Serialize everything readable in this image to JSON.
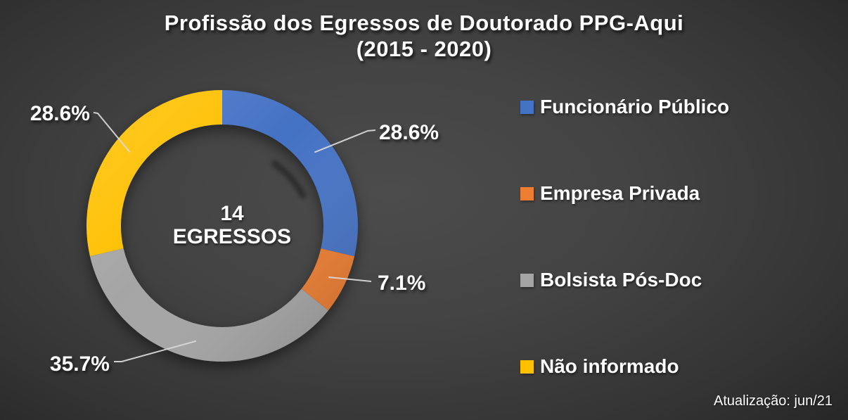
{
  "slide": {
    "title_line1": "Profissão dos Egressos de Doutorado PPG-Aqui",
    "title_line2": "(2015 - 2020)",
    "footnote": "Atualização: jun/21"
  },
  "donut_center": {
    "line1": "14",
    "line2": "EGRESSOS"
  },
  "legend": {
    "items": [
      {
        "label": "Funcionário Público",
        "color": "#4472C4"
      },
      {
        "label": "Empresa Privada",
        "color": "#ED7D31"
      },
      {
        "label": "Bolsista Pós-Doc",
        "color": "#A5A5A5"
      },
      {
        "label": "Não informado",
        "color": "#FFC000"
      }
    ]
  },
  "chart_data": {
    "type": "pie",
    "subtype": "donut",
    "title": "Profissão dos Egressos de Doutorado PPG-Aqui (2015 - 2020)",
    "categories": [
      "Funcionário Público",
      "Empresa Privada",
      "Bolsista Pós-Doc",
      "Não informado"
    ],
    "values": [
      28.6,
      7.1,
      35.7,
      28.6
    ],
    "unit": "%",
    "data_labels": [
      "28.6%",
      "7.1%",
      "35.7%",
      "28.6%"
    ],
    "colors": [
      "#4472C4",
      "#ED7D31",
      "#A5A5A5",
      "#FFC000"
    ],
    "center_text": "14 EGRESSOS",
    "total_egressos": 14,
    "start_angle_deg": 0,
    "direction": "clockwise",
    "hole_ratio": 0.75,
    "legend_position": "right",
    "background_colors": {
      "inner": "#4a4a4a",
      "outer": "#232323"
    }
  }
}
